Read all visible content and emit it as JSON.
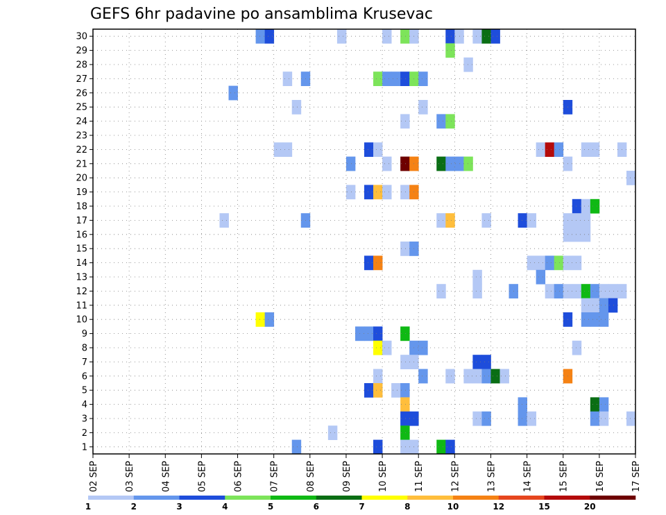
{
  "chart_data": {
    "type": "heatmap",
    "title": "GEFS 6hr padavine po ansamblima Krusevac",
    "xlabel": "",
    "ylabel": "",
    "x_ticks": [
      "02 SEP",
      "03 SEP",
      "04 SEP",
      "05 SEP",
      "06 SEP",
      "07 SEP",
      "08 SEP",
      "09 SEP",
      "10 SEP",
      "11 SEP",
      "12 SEP",
      "13 SEP",
      "14 SEP",
      "15 SEP",
      "16 SEP",
      "17 SEP"
    ],
    "y_ticks": [
      "1",
      "2",
      "3",
      "4",
      "5",
      "6",
      "7",
      "8",
      "9",
      "10",
      "11",
      "12",
      "13",
      "14",
      "15",
      "16",
      "17",
      "18",
      "19",
      "20",
      "21",
      "22",
      "23",
      "24",
      "25",
      "26",
      "27",
      "28",
      "29",
      "30"
    ],
    "x_range_steps": [
      0,
      60
    ],
    "y_range": [
      0,
      30
    ],
    "grid": true,
    "legend": {
      "placement": "bottom",
      "bounds": [
        "1",
        "2",
        "3",
        "4",
        "5",
        "6",
        "7",
        "8",
        "10",
        "12",
        "15",
        "20"
      ],
      "colors": [
        "#b4c8f5",
        "#6496ec",
        "#1e4ddb",
        "#7de45a",
        "#0fb914",
        "#0a6e14",
        "#ffff00",
        "#ffbe3c",
        "#f58214",
        "#e6461e",
        "#b40a0a",
        "#6e0000"
      ]
    },
    "cells": [
      {
        "m": 30,
        "s": [
          {
            "x": 18,
            "c": 1
          },
          {
            "x": 19,
            "c": 2
          },
          {
            "x": 27,
            "c": 0
          },
          {
            "x": 32,
            "c": 0
          },
          {
            "x": 34,
            "c": 3
          },
          {
            "x": 35,
            "c": 0
          },
          {
            "x": 39,
            "c": 2
          },
          {
            "x": 40,
            "c": 0
          },
          {
            "x": 42,
            "c": 0
          },
          {
            "x": 43,
            "c": 5
          },
          {
            "x": 44,
            "c": 2
          }
        ]
      },
      {
        "m": 29,
        "s": [
          {
            "x": 39,
            "c": 3
          }
        ]
      },
      {
        "m": 28,
        "s": [
          {
            "x": 41,
            "c": 0
          }
        ]
      },
      {
        "m": 27,
        "s": [
          {
            "x": 21,
            "c": 0
          },
          {
            "x": 23,
            "c": 1
          },
          {
            "x": 31,
            "c": 3
          },
          {
            "x": 32,
            "c": 1
          },
          {
            "x": 33,
            "c": 1
          },
          {
            "x": 34,
            "c": 2
          },
          {
            "x": 35,
            "c": 3
          },
          {
            "x": 36,
            "c": 1
          }
        ]
      },
      {
        "m": 26,
        "s": [
          {
            "x": 15,
            "c": 1
          }
        ]
      },
      {
        "m": 25,
        "s": [
          {
            "x": 22,
            "c": 0
          },
          {
            "x": 36,
            "c": 0
          },
          {
            "x": 52,
            "c": 2
          }
        ]
      },
      {
        "m": 24,
        "s": [
          {
            "x": 34,
            "c": 0
          },
          {
            "x": 38,
            "c": 1
          },
          {
            "x": 39,
            "c": 3
          }
        ]
      },
      {
        "m": 22,
        "s": [
          {
            "x": 20,
            "c": 0
          },
          {
            "x": 21,
            "c": 0
          },
          {
            "x": 30,
            "c": 2
          },
          {
            "x": 31,
            "c": 0
          },
          {
            "x": 49,
            "c": 0
          },
          {
            "x": 50,
            "c": 10
          },
          {
            "x": 51,
            "c": 1
          },
          {
            "x": 54,
            "c": 0
          },
          {
            "x": 55,
            "c": 0
          },
          {
            "x": 58,
            "c": 0
          }
        ]
      },
      {
        "m": 21,
        "s": [
          {
            "x": 28,
            "c": 1
          },
          {
            "x": 32,
            "c": 0
          },
          {
            "x": 34,
            "c": 11
          },
          {
            "x": 35,
            "c": 8
          },
          {
            "x": 38,
            "c": 5
          },
          {
            "x": 39,
            "c": 1
          },
          {
            "x": 40,
            "c": 1
          },
          {
            "x": 41,
            "c": 3
          },
          {
            "x": 52,
            "c": 0
          }
        ]
      },
      {
        "m": 20,
        "s": [
          {
            "x": 59,
            "c": 0
          }
        ]
      },
      {
        "m": 19,
        "s": [
          {
            "x": 28,
            "c": 0
          },
          {
            "x": 30,
            "c": 2
          },
          {
            "x": 31,
            "c": 7
          },
          {
            "x": 32,
            "c": 0
          },
          {
            "x": 34,
            "c": 0
          },
          {
            "x": 35,
            "c": 8
          }
        ]
      },
      {
        "m": 18,
        "s": [
          {
            "x": 53,
            "c": 2
          },
          {
            "x": 54,
            "c": 0
          },
          {
            "x": 55,
            "c": 4
          }
        ]
      },
      {
        "m": 17,
        "s": [
          {
            "x": 14,
            "c": 0
          },
          {
            "x": 23,
            "c": 1
          },
          {
            "x": 38,
            "c": 0
          },
          {
            "x": 39,
            "c": 7
          },
          {
            "x": 43,
            "c": 0
          },
          {
            "x": 47,
            "c": 2
          },
          {
            "x": 48,
            "c": 0
          },
          {
            "x": 52,
            "c": 0
          },
          {
            "x": 53,
            "c": 0
          },
          {
            "x": 54,
            "c": 0
          }
        ]
      },
      {
        "m": 16,
        "s": [
          {
            "x": 52,
            "c": 0
          },
          {
            "x": 53,
            "c": 0
          },
          {
            "x": 54,
            "c": 0
          }
        ]
      },
      {
        "m": 15,
        "s": [
          {
            "x": 34,
            "c": 0
          },
          {
            "x": 35,
            "c": 1
          }
        ]
      },
      {
        "m": 14,
        "s": [
          {
            "x": 30,
            "c": 2
          },
          {
            "x": 31,
            "c": 8
          },
          {
            "x": 48,
            "c": 0
          },
          {
            "x": 49,
            "c": 0
          },
          {
            "x": 50,
            "c": 1
          },
          {
            "x": 51,
            "c": 3
          },
          {
            "x": 52,
            "c": 0
          },
          {
            "x": 53,
            "c": 0
          }
        ]
      },
      {
        "m": 13,
        "s": [
          {
            "x": 42,
            "c": 0
          },
          {
            "x": 49,
            "c": 1
          }
        ]
      },
      {
        "m": 12,
        "s": [
          {
            "x": 38,
            "c": 0
          },
          {
            "x": 42,
            "c": 0
          },
          {
            "x": 46,
            "c": 1
          },
          {
            "x": 50,
            "c": 0
          },
          {
            "x": 51,
            "c": 1
          },
          {
            "x": 52,
            "c": 0
          },
          {
            "x": 53,
            "c": 0
          },
          {
            "x": 54,
            "c": 4
          },
          {
            "x": 55,
            "c": 1
          },
          {
            "x": 56,
            "c": 0
          },
          {
            "x": 57,
            "c": 0
          },
          {
            "x": 58,
            "c": 0
          }
        ]
      },
      {
        "m": 11,
        "s": [
          {
            "x": 54,
            "c": 0
          },
          {
            "x": 55,
            "c": 0
          },
          {
            "x": 56,
            "c": 1
          },
          {
            "x": 57,
            "c": 2
          }
        ]
      },
      {
        "m": 10,
        "s": [
          {
            "x": 18,
            "c": 6
          },
          {
            "x": 19,
            "c": 1
          },
          {
            "x": 52,
            "c": 2
          },
          {
            "x": 54,
            "c": 1
          },
          {
            "x": 55,
            "c": 1
          },
          {
            "x": 56,
            "c": 1
          }
        ]
      },
      {
        "m": 9,
        "s": [
          {
            "x": 29,
            "c": 1
          },
          {
            "x": 30,
            "c": 1
          },
          {
            "x": 31,
            "c": 2
          },
          {
            "x": 34,
            "c": 4
          }
        ]
      },
      {
        "m": 8,
        "s": [
          {
            "x": 31,
            "c": 6
          },
          {
            "x": 32,
            "c": 0
          },
          {
            "x": 35,
            "c": 1
          },
          {
            "x": 36,
            "c": 1
          },
          {
            "x": 53,
            "c": 0
          }
        ]
      },
      {
        "m": 7,
        "s": [
          {
            "x": 34,
            "c": 0
          },
          {
            "x": 35,
            "c": 0
          },
          {
            "x": 42,
            "c": 2
          },
          {
            "x": 43,
            "c": 2
          }
        ]
      },
      {
        "m": 6,
        "s": [
          {
            "x": 31,
            "c": 0
          },
          {
            "x": 36,
            "c": 1
          },
          {
            "x": 39,
            "c": 0
          },
          {
            "x": 41,
            "c": 0
          },
          {
            "x": 42,
            "c": 0
          },
          {
            "x": 43,
            "c": 1
          },
          {
            "x": 44,
            "c": 5
          },
          {
            "x": 45,
            "c": 0
          },
          {
            "x": 52,
            "c": 8
          }
        ]
      },
      {
        "m": 5,
        "s": [
          {
            "x": 30,
            "c": 2
          },
          {
            "x": 31,
            "c": 7
          },
          {
            "x": 33,
            "c": 0
          },
          {
            "x": 34,
            "c": 1
          }
        ]
      },
      {
        "m": 4,
        "s": [
          {
            "x": 34,
            "c": 7
          },
          {
            "x": 47,
            "c": 1
          },
          {
            "x": 55,
            "c": 5
          },
          {
            "x": 56,
            "c": 1
          }
        ]
      },
      {
        "m": 3,
        "s": [
          {
            "x": 34,
            "c": 2
          },
          {
            "x": 35,
            "c": 2
          },
          {
            "x": 42,
            "c": 0
          },
          {
            "x": 43,
            "c": 1
          },
          {
            "x": 47,
            "c": 1
          },
          {
            "x": 48,
            "c": 0
          },
          {
            "x": 55,
            "c": 1
          },
          {
            "x": 56,
            "c": 0
          },
          {
            "x": 59,
            "c": 0
          }
        ]
      },
      {
        "m": 2,
        "s": [
          {
            "x": 26,
            "c": 0
          },
          {
            "x": 34,
            "c": 4
          }
        ]
      },
      {
        "m": 1,
        "s": [
          {
            "x": 22,
            "c": 1
          },
          {
            "x": 31,
            "c": 2
          },
          {
            "x": 34,
            "c": 0
          },
          {
            "x": 35,
            "c": 0
          },
          {
            "x": 38,
            "c": 4
          },
          {
            "x": 39,
            "c": 2
          }
        ]
      }
    ]
  }
}
